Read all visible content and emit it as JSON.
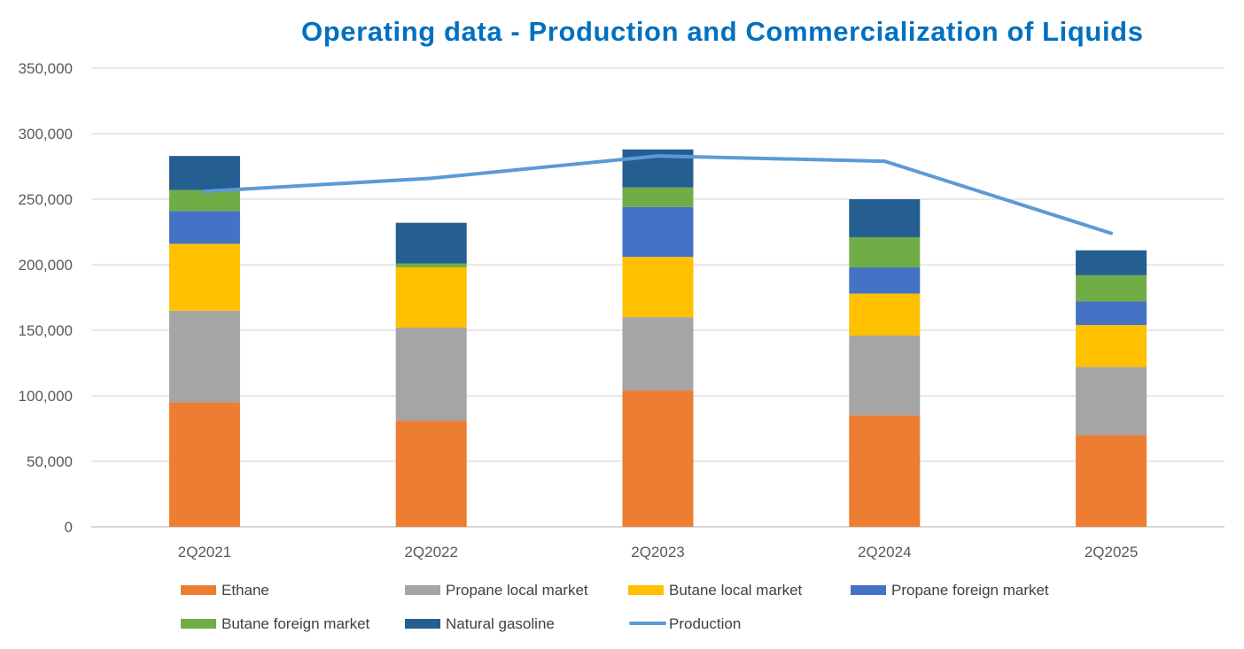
{
  "chart_data": {
    "type": "bar",
    "stacked": true,
    "title": "Operating data - Production and Commercialization of Liquids",
    "categories": [
      "2Q2021",
      "2Q2022",
      "2Q2023",
      "2Q2024",
      "2Q2025"
    ],
    "ylim": [
      0,
      350000
    ],
    "yticks": [
      0,
      50000,
      100000,
      150000,
      200000,
      250000,
      300000,
      350000
    ],
    "ytick_labels": [
      "0",
      "50,000",
      "100,000",
      "150,000",
      "200,000",
      "250,000",
      "300,000",
      "350,000"
    ],
    "grid": true,
    "legend_position": "bottom",
    "series": [
      {
        "name": "Ethane",
        "kind": "bar",
        "color": "#ED7D31",
        "values": [
          95000,
          81000,
          104000,
          85000,
          70000
        ]
      },
      {
        "name": "Propane local market",
        "kind": "bar",
        "color": "#A5A5A5",
        "values": [
          70000,
          71000,
          56000,
          61000,
          52000
        ]
      },
      {
        "name": "Butane local market",
        "kind": "bar",
        "color": "#FFC000",
        "values": [
          51000,
          46000,
          46000,
          32000,
          32000
        ]
      },
      {
        "name": "Propane foreign market",
        "kind": "bar",
        "color": "#4472C4",
        "values": [
          25000,
          0,
          38000,
          20000,
          18000
        ]
      },
      {
        "name": "Butane foreign market",
        "kind": "bar",
        "color": "#70AD47",
        "values": [
          16000,
          3000,
          15000,
          23000,
          20000
        ]
      },
      {
        "name": "Natural gasoline",
        "kind": "bar",
        "color": "#255E91",
        "values": [
          26000,
          31000,
          29000,
          29000,
          19000
        ]
      },
      {
        "name": "Production",
        "kind": "line",
        "color": "#5B9BD5",
        "values": [
          256000,
          266000,
          283000,
          279000,
          224000
        ]
      }
    ]
  }
}
